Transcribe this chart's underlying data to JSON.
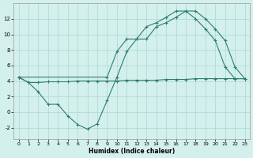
{
  "line1_x": [
    0,
    1,
    2,
    3,
    4,
    5,
    6,
    7,
    8,
    9,
    10,
    11,
    12,
    13,
    14,
    15,
    16,
    17,
    18,
    19,
    20,
    21,
    22,
    23
  ],
  "line1_y": [
    4.5,
    3.8,
    2.6,
    1.0,
    1.0,
    -0.5,
    -1.6,
    -2.2,
    -1.5,
    1.5,
    4.5,
    7.8,
    9.4,
    9.4,
    11.0,
    11.5,
    12.2,
    13.0,
    13.0,
    12.0,
    10.7,
    9.2,
    5.8,
    4.3
  ],
  "line2_x": [
    0,
    1,
    2,
    3,
    4,
    5,
    6,
    7,
    8,
    9,
    10,
    11,
    12,
    13,
    14,
    15,
    16,
    17,
    18,
    19,
    20,
    21,
    22,
    23
  ],
  "line2_y": [
    4.5,
    3.8,
    3.8,
    3.9,
    3.9,
    3.9,
    4.0,
    4.0,
    4.0,
    4.0,
    4.0,
    4.1,
    4.1,
    4.1,
    4.1,
    4.2,
    4.2,
    4.2,
    4.3,
    4.3,
    4.3,
    4.3,
    4.3,
    4.3
  ],
  "line3_x": [
    0,
    9,
    10,
    11,
    12,
    13,
    14,
    15,
    16,
    17,
    18,
    19,
    20,
    21,
    22,
    23
  ],
  "line3_y": [
    4.5,
    4.5,
    7.8,
    9.4,
    9.4,
    11.0,
    11.5,
    12.2,
    13.0,
    13.0,
    12.0,
    10.7,
    9.2,
    5.8,
    4.3,
    4.3
  ],
  "color": "#2e7d6e",
  "background": "#d4f0ec",
  "grid_color": "#a8d8d2",
  "xlabel": "Humidex (Indice chaleur)",
  "ylim": [
    -3.5,
    14.0
  ],
  "xlim": [
    -0.5,
    23.5
  ],
  "yticks": [
    -2,
    0,
    2,
    4,
    6,
    8,
    10,
    12
  ],
  "xticks": [
    0,
    1,
    2,
    3,
    4,
    5,
    6,
    7,
    8,
    9,
    10,
    11,
    12,
    13,
    14,
    15,
    16,
    17,
    18,
    19,
    20,
    21,
    22,
    23
  ]
}
